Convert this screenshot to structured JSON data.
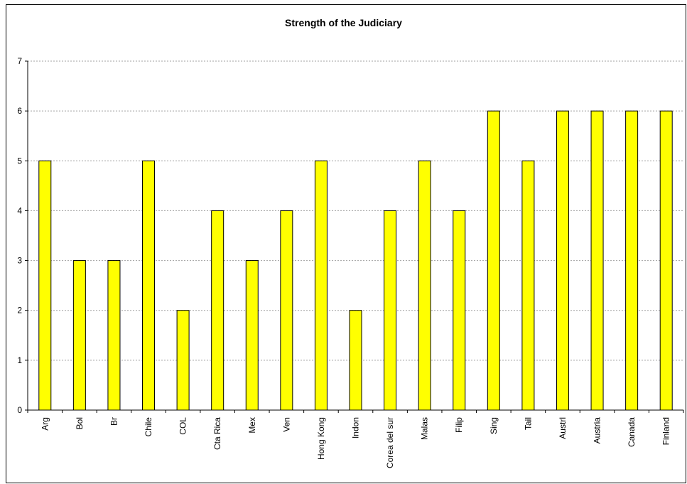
{
  "chart_data": {
    "type": "bar",
    "title": "Strength of the Judiciary",
    "xlabel": "",
    "ylabel": "",
    "categories": [
      "Arg",
      "Bol",
      "Br",
      "Chile",
      "COL",
      "Cta Rica",
      "Mex",
      "Ven",
      "Hong Kong",
      "Indon",
      "Corea del sur",
      "Malas",
      "Filip",
      "Sing",
      "Tail",
      "Austrl",
      "Austria",
      "Canada",
      "Finland"
    ],
    "values": [
      5,
      3,
      3,
      5,
      2,
      4,
      3,
      4,
      5,
      2,
      4,
      5,
      4,
      6,
      5,
      6,
      6,
      6,
      6
    ],
    "ylim": [
      0,
      7
    ],
    "yticks": [
      0,
      1,
      2,
      3,
      4,
      5,
      6,
      7
    ],
    "grid": true,
    "bar_color": "#ffff00",
    "bar_edge_color": "#000000",
    "gridline_color": "#a0a0a0"
  }
}
